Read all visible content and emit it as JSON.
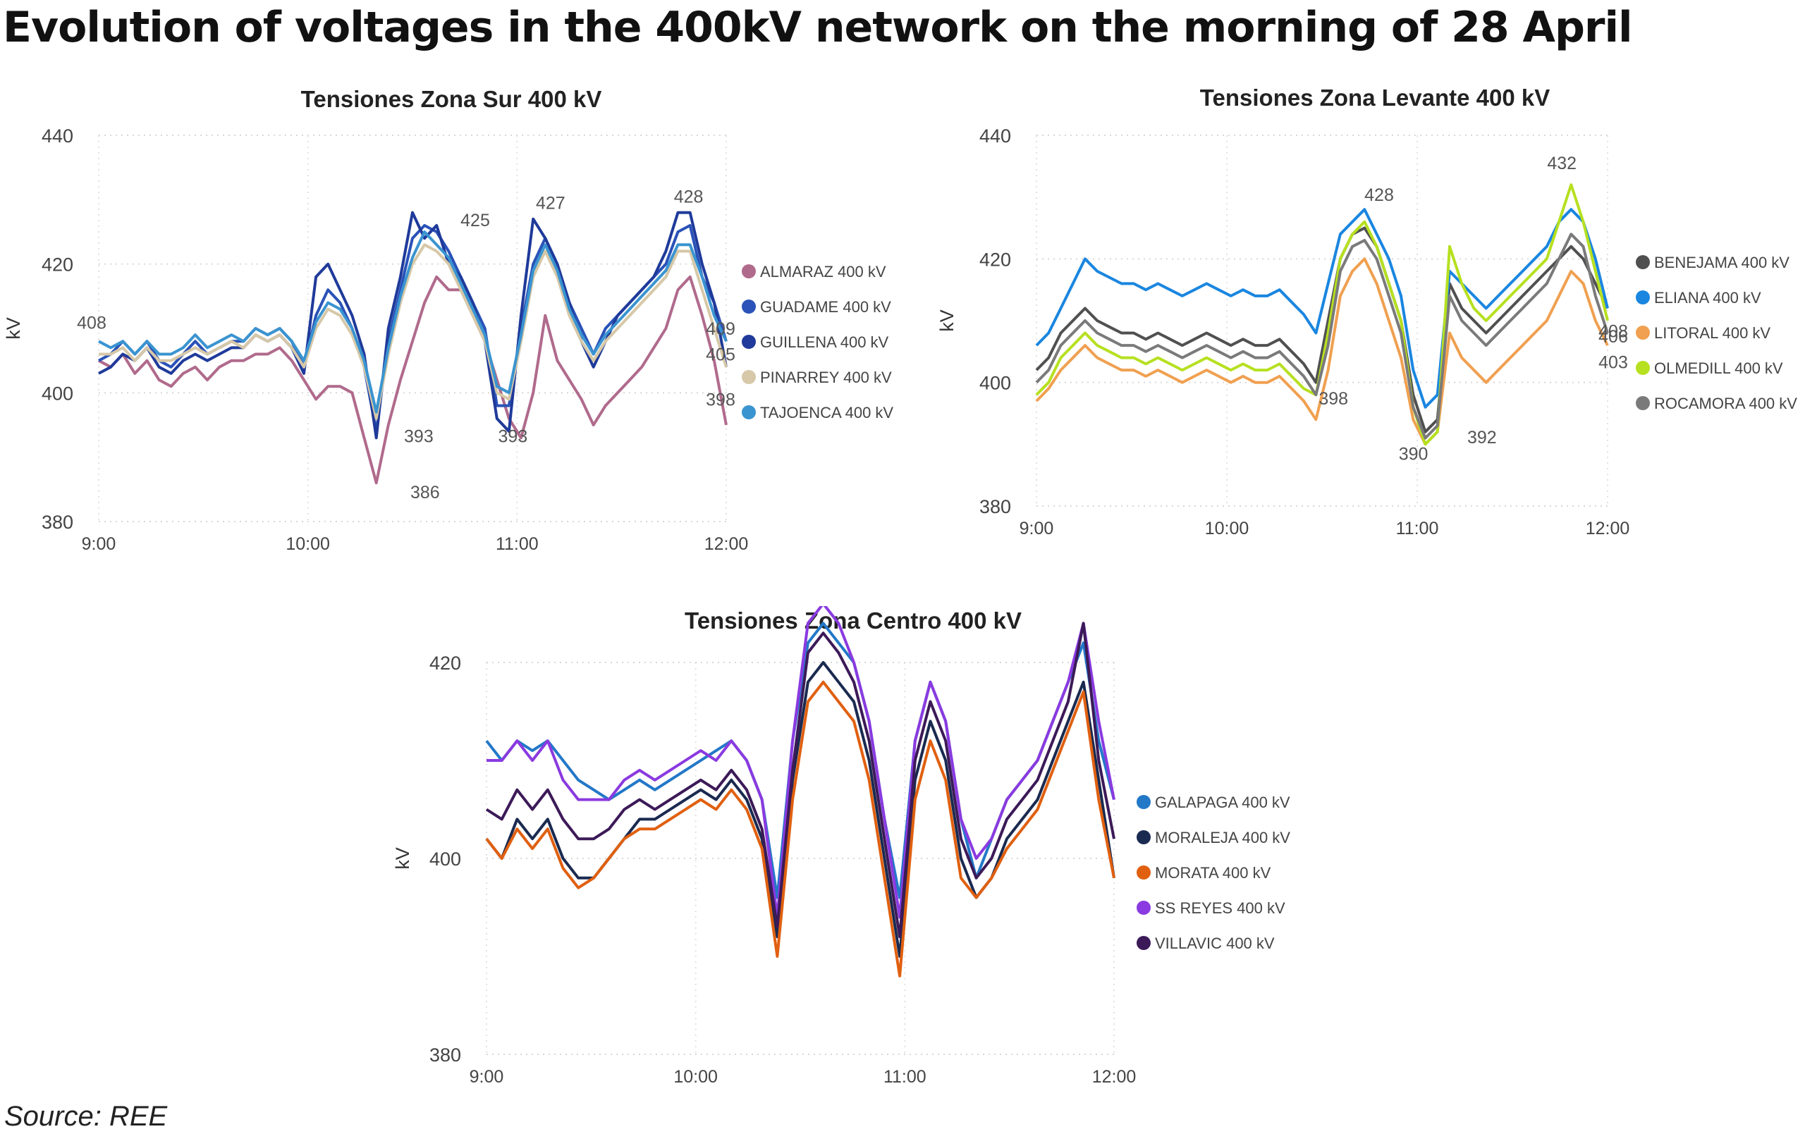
{
  "title": "Evolution of voltages in the 400kV network on the morning of 28 April",
  "source": "Source: REE",
  "chart_data": [
    {
      "id": "sur",
      "type": "line",
      "title": "Tensiones Zona Sur 400 kV",
      "ylabel": "kV",
      "ylim": [
        380,
        440
      ],
      "yticks": [
        380,
        400,
        420,
        440
      ],
      "xticks": [
        "9:00",
        "10:00",
        "11:00",
        "12:00"
      ],
      "grid": true,
      "legend_position": "right",
      "series": [
        {
          "name": "ALMARAZ 400 kV",
          "color": "#b06a8c",
          "values": [
            405,
            404,
            406,
            403,
            405,
            402,
            401,
            403,
            404,
            402,
            404,
            405,
            405,
            406,
            406,
            407,
            405,
            402,
            399,
            401,
            401,
            400,
            393,
            386,
            395,
            402,
            408,
            414,
            418,
            416,
            416,
            412,
            408,
            402,
            396,
            393,
            400,
            412,
            405,
            402,
            399,
            395,
            398,
            400,
            402,
            404,
            407,
            410,
            416,
            418,
            412,
            405,
            395
          ]
        },
        {
          "name": "GUADAME 400 kV",
          "color": "#2a52b8",
          "values": [
            405,
            406,
            408,
            406,
            408,
            405,
            404,
            406,
            408,
            406,
            407,
            408,
            408,
            410,
            409,
            410,
            408,
            404,
            412,
            416,
            414,
            410,
            404,
            394,
            408,
            416,
            424,
            426,
            425,
            422,
            418,
            414,
            410,
            398,
            398,
            410,
            420,
            424,
            420,
            414,
            410,
            406,
            410,
            412,
            414,
            416,
            418,
            420,
            425,
            426,
            418,
            414,
            408
          ]
        },
        {
          "name": "GUILLENA 400 kV",
          "color": "#1f3a9a",
          "values": [
            403,
            404,
            406,
            405,
            407,
            404,
            403,
            405,
            406,
            405,
            406,
            407,
            407,
            409,
            408,
            409,
            407,
            403,
            418,
            420,
            416,
            412,
            406,
            393,
            410,
            418,
            428,
            424,
            426,
            420,
            418,
            414,
            408,
            396,
            394,
            412,
            427,
            424,
            420,
            414,
            408,
            404,
            408,
            412,
            414,
            416,
            418,
            422,
            428,
            428,
            420,
            414,
            404
          ]
        },
        {
          "name": "PINARREY 400 kV",
          "color": "#d6c8a8",
          "values": [
            406,
            406,
            407,
            405,
            407,
            405,
            405,
            406,
            407,
            406,
            407,
            408,
            407,
            409,
            408,
            409,
            407,
            404,
            410,
            413,
            412,
            409,
            404,
            396,
            406,
            414,
            420,
            423,
            422,
            420,
            416,
            412,
            408,
            400,
            399,
            408,
            418,
            422,
            418,
            412,
            408,
            405,
            408,
            410,
            412,
            414,
            416,
            418,
            422,
            422,
            416,
            410,
            404
          ]
        },
        {
          "name": "TAJOENCA 400 kV",
          "color": "#3a94d0",
          "values": [
            408,
            407,
            408,
            406,
            408,
            406,
            406,
            407,
            409,
            407,
            408,
            409,
            408,
            410,
            409,
            410,
            408,
            405,
            411,
            414,
            413,
            410,
            405,
            397,
            407,
            415,
            421,
            425,
            423,
            421,
            417,
            413,
            409,
            401,
            400,
            409,
            419,
            423,
            419,
            413,
            409,
            406,
            409,
            411,
            413,
            415,
            417,
            419,
            423,
            423,
            418,
            412,
            408
          ]
        }
      ],
      "annotations": [
        "408",
        "425",
        "427",
        "428",
        "393",
        "386",
        "393",
        "409",
        "405",
        "398"
      ]
    },
    {
      "id": "levante",
      "type": "line",
      "title": "Tensiones Zona Levante 400 kV",
      "ylabel": "kV",
      "ylim": [
        380,
        440
      ],
      "yticks": [
        380,
        400,
        420,
        440
      ],
      "xticks": [
        "9:00",
        "10:00",
        "11:00",
        "12:00"
      ],
      "grid": true,
      "legend_position": "right",
      "series": [
        {
          "name": "BENEJAMA 400 kV",
          "color": "#505050",
          "values": [
            402,
            404,
            408,
            410,
            412,
            410,
            409,
            408,
            408,
            407,
            408,
            407,
            406,
            407,
            408,
            407,
            406,
            407,
            406,
            406,
            407,
            405,
            403,
            400,
            410,
            420,
            424,
            425,
            422,
            416,
            410,
            398,
            392,
            394,
            416,
            412,
            410,
            408,
            410,
            412,
            414,
            416,
            418,
            420,
            422,
            420,
            416,
            412
          ]
        },
        {
          "name": "ELIANA 400 kV",
          "color": "#1a86e0",
          "values": [
            406,
            408,
            412,
            416,
            420,
            418,
            417,
            416,
            416,
            415,
            416,
            415,
            414,
            415,
            416,
            415,
            414,
            415,
            414,
            414,
            415,
            413,
            411,
            408,
            416,
            424,
            426,
            428,
            424,
            420,
            414,
            402,
            396,
            398,
            418,
            416,
            414,
            412,
            414,
            416,
            418,
            420,
            422,
            426,
            428,
            426,
            420,
            412
          ]
        },
        {
          "name": "LITORAL 400 kV",
          "color": "#f0a050",
          "values": [
            397,
            399,
            402,
            404,
            406,
            404,
            403,
            402,
            402,
            401,
            402,
            401,
            400,
            401,
            402,
            401,
            400,
            401,
            400,
            400,
            401,
            399,
            397,
            394,
            402,
            414,
            418,
            420,
            416,
            410,
            404,
            394,
            390,
            392,
            408,
            404,
            402,
            400,
            402,
            404,
            406,
            408,
            410,
            414,
            418,
            416,
            410,
            406
          ]
        },
        {
          "name": "OLMEDILL 400 kV",
          "color": "#b6e020",
          "values": [
            398,
            400,
            404,
            406,
            408,
            406,
            405,
            404,
            404,
            403,
            404,
            403,
            402,
            403,
            404,
            403,
            402,
            403,
            402,
            402,
            403,
            401,
            399,
            398,
            408,
            420,
            424,
            426,
            422,
            416,
            410,
            396,
            390,
            392,
            422,
            416,
            412,
            410,
            412,
            414,
            416,
            418,
            420,
            426,
            432,
            426,
            418,
            410
          ]
        },
        {
          "name": "ROCAMORA 400 kV",
          "color": "#7a7a7a",
          "values": [
            400,
            402,
            406,
            408,
            410,
            408,
            407,
            406,
            406,
            405,
            406,
            405,
            404,
            405,
            406,
            405,
            404,
            405,
            404,
            404,
            405,
            403,
            401,
            398,
            406,
            418,
            422,
            423,
            420,
            414,
            408,
            396,
            391,
            393,
            414,
            410,
            408,
            406,
            408,
            410,
            412,
            414,
            416,
            420,
            424,
            422,
            414,
            408
          ]
        }
      ],
      "annotations": [
        "428",
        "432",
        "398",
        "390",
        "392",
        "408",
        "403",
        "406"
      ]
    },
    {
      "id": "centro",
      "type": "line",
      "title": "Tensiones Zona Centro 400 kV",
      "ylabel": "kV",
      "ylim": [
        380,
        400,
        420
      ],
      "yticks": [
        380,
        400,
        420
      ],
      "xticks": [
        "9:00",
        "10:00",
        "11:00",
        "12:00"
      ],
      "grid": true,
      "legend_position": "right",
      "series": [
        {
          "name": "GALAPAGA 400 kV",
          "color": "#2378c8",
          "values": [
            412,
            410,
            412,
            411,
            412,
            410,
            408,
            407,
            406,
            407,
            408,
            407,
            408,
            409,
            410,
            411,
            412,
            410,
            406,
            396,
            412,
            422,
            424,
            422,
            420,
            414,
            404,
            396,
            412,
            418,
            414,
            404,
            398,
            402,
            406,
            408,
            410,
            414,
            418,
            422,
            412,
            406
          ]
        },
        {
          "name": "MORALEJA 400 kV",
          "color": "#1a2a50",
          "values": [
            402,
            400,
            404,
            402,
            404,
            400,
            398,
            398,
            400,
            402,
            404,
            404,
            405,
            406,
            407,
            406,
            408,
            406,
            402,
            392,
            408,
            418,
            420,
            418,
            416,
            410,
            400,
            390,
            408,
            414,
            410,
            400,
            396,
            398,
            402,
            404,
            406,
            410,
            414,
            418,
            408,
            398
          ]
        },
        {
          "name": "MORATA 400 kV",
          "color": "#e06010",
          "values": [
            402,
            400,
            403,
            401,
            403,
            399,
            397,
            398,
            400,
            402,
            403,
            403,
            404,
            405,
            406,
            405,
            407,
            405,
            401,
            390,
            406,
            416,
            418,
            416,
            414,
            408,
            398,
            388,
            406,
            412,
            408,
            398,
            396,
            398,
            401,
            403,
            405,
            409,
            413,
            417,
            406,
            398
          ]
        },
        {
          "name": "SS REYES 400 kV",
          "color": "#8a3ae0",
          "values": [
            410,
            410,
            412,
            410,
            412,
            408,
            406,
            406,
            406,
            408,
            409,
            408,
            409,
            410,
            411,
            410,
            412,
            410,
            406,
            394,
            412,
            424,
            426,
            424,
            420,
            414,
            404,
            394,
            412,
            418,
            414,
            404,
            400,
            402,
            406,
            408,
            410,
            414,
            418,
            424,
            414,
            406
          ]
        },
        {
          "name": "VILLAVIC 400 kV",
          "color": "#3c1a58",
          "values": [
            405,
            404,
            407,
            405,
            407,
            404,
            402,
            402,
            403,
            405,
            406,
            405,
            406,
            407,
            408,
            407,
            409,
            407,
            403,
            393,
            409,
            421,
            423,
            421,
            418,
            412,
            402,
            392,
            410,
            416,
            412,
            402,
            398,
            400,
            404,
            406,
            408,
            412,
            416,
            424,
            410,
            402
          ]
        }
      ]
    }
  ]
}
